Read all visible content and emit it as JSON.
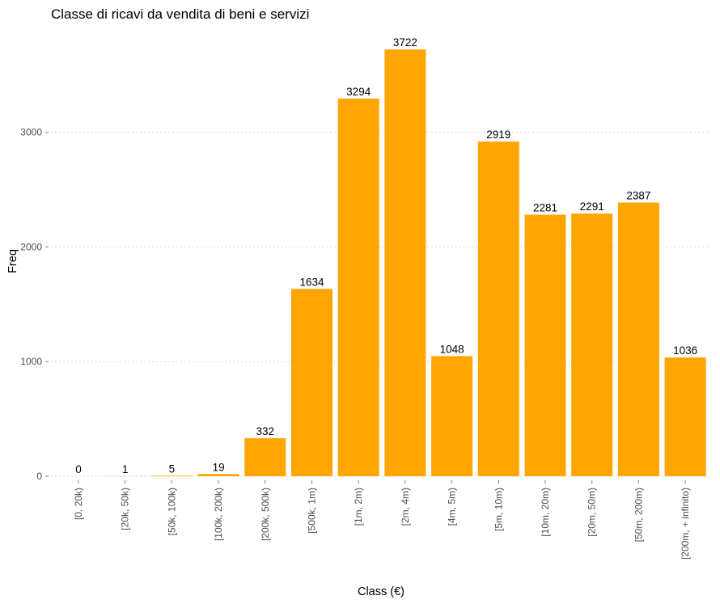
{
  "chart_data": {
    "type": "bar",
    "title": "Classe di ricavi da vendita di beni e servizi",
    "xlabel": "Class (€)",
    "ylabel": "Freq",
    "categories": [
      "[0, 20k)",
      "[20k, 50k)",
      "[50k, 100k)",
      "[100k, 200k)",
      "[200k, 500k)",
      "[500k, 1m)",
      "[1m, 2m)",
      "[2m, 4m)",
      "[4m, 5m)",
      "[5m, 10m)",
      "[10m, 20m)",
      "[20m, 50m)",
      "[50m, 200m)",
      "[200m, + infinito)"
    ],
    "values": [
      0,
      1,
      5,
      19,
      332,
      1634,
      3294,
      3722,
      1048,
      2919,
      2281,
      2291,
      2387,
      1036
    ],
    "yticks": [
      0,
      1000,
      2000,
      3000
    ],
    "ylim": [
      0,
      3722
    ],
    "grid": "horizontal-dotted",
    "legend": "none",
    "bar_color": "#FFA500"
  }
}
